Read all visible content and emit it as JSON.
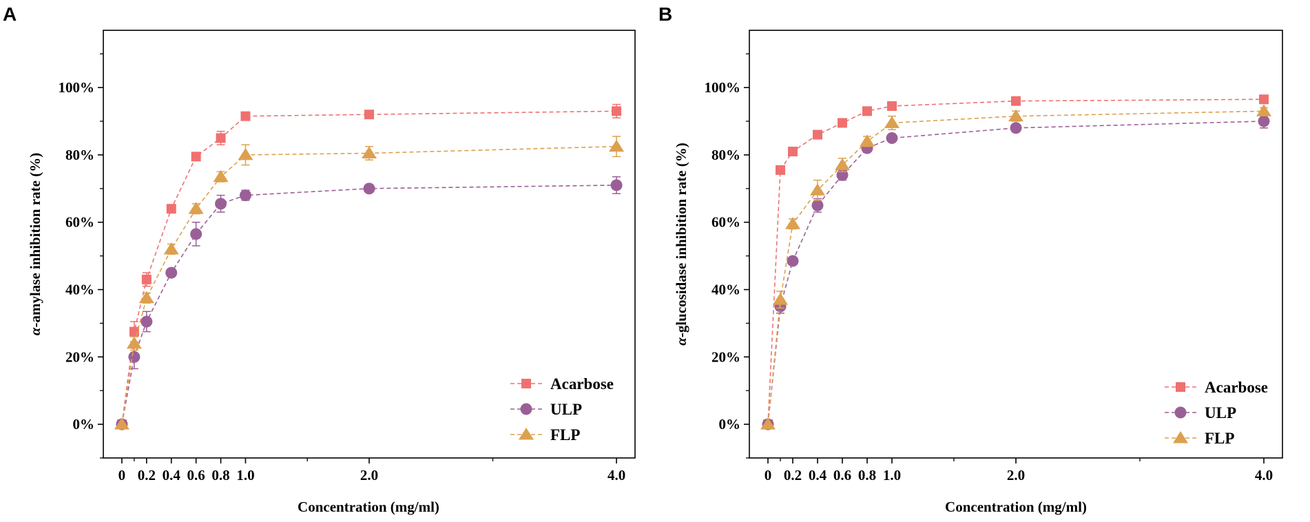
{
  "panels": {
    "A": {
      "letter": "A"
    },
    "B": {
      "letter": "B"
    }
  },
  "chart_data": [
    {
      "type": "line",
      "panel": "A",
      "title": "",
      "xlabel": "Concentration (mg/ml)",
      "ylabel": "α-amylase inhibition rate (%)",
      "ylabel_parts": [
        "α",
        "-amylase inhibition rate (%)"
      ],
      "xlim": [
        -0.15,
        4.15
      ],
      "ylim": [
        -10,
        117
      ],
      "x_tick_values": [
        0,
        0.2,
        0.4,
        0.6,
        0.8,
        1.0,
        2.0,
        4.0
      ],
      "x_tick_labels": [
        "0",
        "0.2",
        "0.4",
        "0.6",
        "0.8",
        "1.0",
        "2.0",
        "4.0"
      ],
      "x_minor_ticks": [
        0.1,
        1.5,
        3.0
      ],
      "y_tick_values": [
        0,
        20,
        40,
        60,
        80,
        100
      ],
      "y_tick_labels": [
        "0%",
        "20%",
        "40%",
        "60%",
        "80%",
        "100%"
      ],
      "legend_position": "bottom-right",
      "series": [
        {
          "name": "Acarbose",
          "marker": "square",
          "color": "#f07070",
          "x": [
            0,
            0.1,
            0.2,
            0.4,
            0.6,
            0.8,
            1.0,
            2.0,
            4.0
          ],
          "values": [
            0,
            27.5,
            43,
            64,
            79.5,
            85,
            91.5,
            92,
            93
          ],
          "errors": [
            0,
            3,
            2,
            1,
            1,
            2,
            1,
            1,
            2
          ]
        },
        {
          "name": "ULP",
          "marker": "circle",
          "color": "#9b5f98",
          "x": [
            0,
            0.1,
            0.2,
            0.4,
            0.6,
            0.8,
            1.0,
            2.0,
            4.0
          ],
          "values": [
            0,
            20,
            30.5,
            45,
            56.5,
            65.5,
            68,
            70,
            71
          ],
          "errors": [
            0,
            3.5,
            3,
            1,
            3.5,
            2.5,
            1.5,
            1,
            2.5
          ]
        },
        {
          "name": "FLP",
          "marker": "triangle",
          "color": "#dca04e",
          "x": [
            0,
            0.1,
            0.2,
            0.4,
            0.6,
            0.8,
            1.0,
            2.0,
            4.0
          ],
          "values": [
            0,
            24,
            37.5,
            52,
            64,
            73.5,
            80,
            80.5,
            82.5
          ],
          "errors": [
            0,
            2,
            1.5,
            1.5,
            1.5,
            1.5,
            3,
            2,
            3
          ]
        }
      ]
    },
    {
      "type": "line",
      "panel": "B",
      "title": "",
      "xlabel": "Concentration (mg/ml)",
      "ylabel": "α-glucosidase inhibition rate (%)",
      "ylabel_parts": [
        "α",
        "-glucosidase inhibition rate (%)"
      ],
      "xlim": [
        -0.15,
        4.15
      ],
      "ylim": [
        -10,
        117
      ],
      "x_tick_values": [
        0,
        0.2,
        0.4,
        0.6,
        0.8,
        1.0,
        2.0,
        4.0
      ],
      "x_tick_labels": [
        "0",
        "0.2",
        "0.4",
        "0.6",
        "0.8",
        "1.0",
        "2.0",
        "4.0"
      ],
      "x_minor_ticks": [
        0.1,
        1.5,
        3.0
      ],
      "y_tick_values": [
        0,
        20,
        40,
        60,
        80,
        100
      ],
      "y_tick_labels": [
        "0%",
        "20%",
        "40%",
        "60%",
        "80%",
        "100%"
      ],
      "legend_position": "bottom-right",
      "series": [
        {
          "name": "Acarbose",
          "marker": "square",
          "color": "#f07070",
          "x": [
            0,
            0.1,
            0.2,
            0.4,
            0.6,
            0.8,
            1.0,
            2.0,
            4.0
          ],
          "values": [
            0,
            75.5,
            81,
            86,
            89.5,
            93,
            94.5,
            96,
            96.5
          ],
          "errors": [
            0,
            1,
            1,
            1,
            1,
            1,
            1,
            1,
            1
          ]
        },
        {
          "name": "ULP",
          "marker": "circle",
          "color": "#9b5f98",
          "x": [
            0,
            0.1,
            0.2,
            0.4,
            0.6,
            0.8,
            1.0,
            2.0,
            4.0
          ],
          "values": [
            0,
            35,
            48.5,
            65,
            74,
            82,
            85,
            88,
            90
          ],
          "errors": [
            0,
            2,
            1,
            2,
            1.5,
            1,
            1,
            1,
            2
          ]
        },
        {
          "name": "FLP",
          "marker": "triangle",
          "color": "#dca04e",
          "x": [
            0,
            0.1,
            0.2,
            0.4,
            0.6,
            0.8,
            1.0,
            2.0,
            4.0
          ],
          "values": [
            0,
            37,
            59.5,
            69.5,
            77,
            84,
            89.5,
            91.5,
            93
          ],
          "errors": [
            0,
            2.5,
            1.5,
            3,
            2,
            1.5,
            2,
            1.5,
            1
          ]
        }
      ]
    }
  ]
}
